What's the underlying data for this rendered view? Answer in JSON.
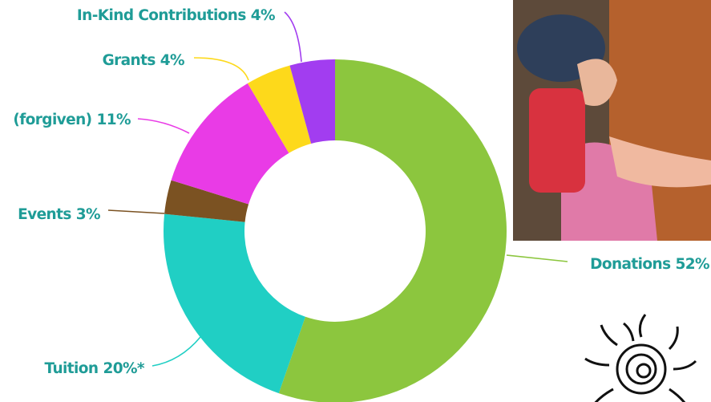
{
  "chart_data": {
    "type": "donut",
    "categories": [
      "Donations",
      "Tuition",
      "Events",
      "(forgiven)",
      "Grants",
      "In-Kind Contributions"
    ],
    "values": [
      52,
      20,
      3,
      11,
      4,
      4
    ],
    "value_labels": [
      "52%",
      "20%*",
      "3%",
      "11%",
      "4%",
      "4%"
    ],
    "colors": [
      "#8cc63e",
      "#20cfc4",
      "#7b5222",
      "#e93be6",
      "#fdd91b",
      "#a23df0"
    ]
  }
}
